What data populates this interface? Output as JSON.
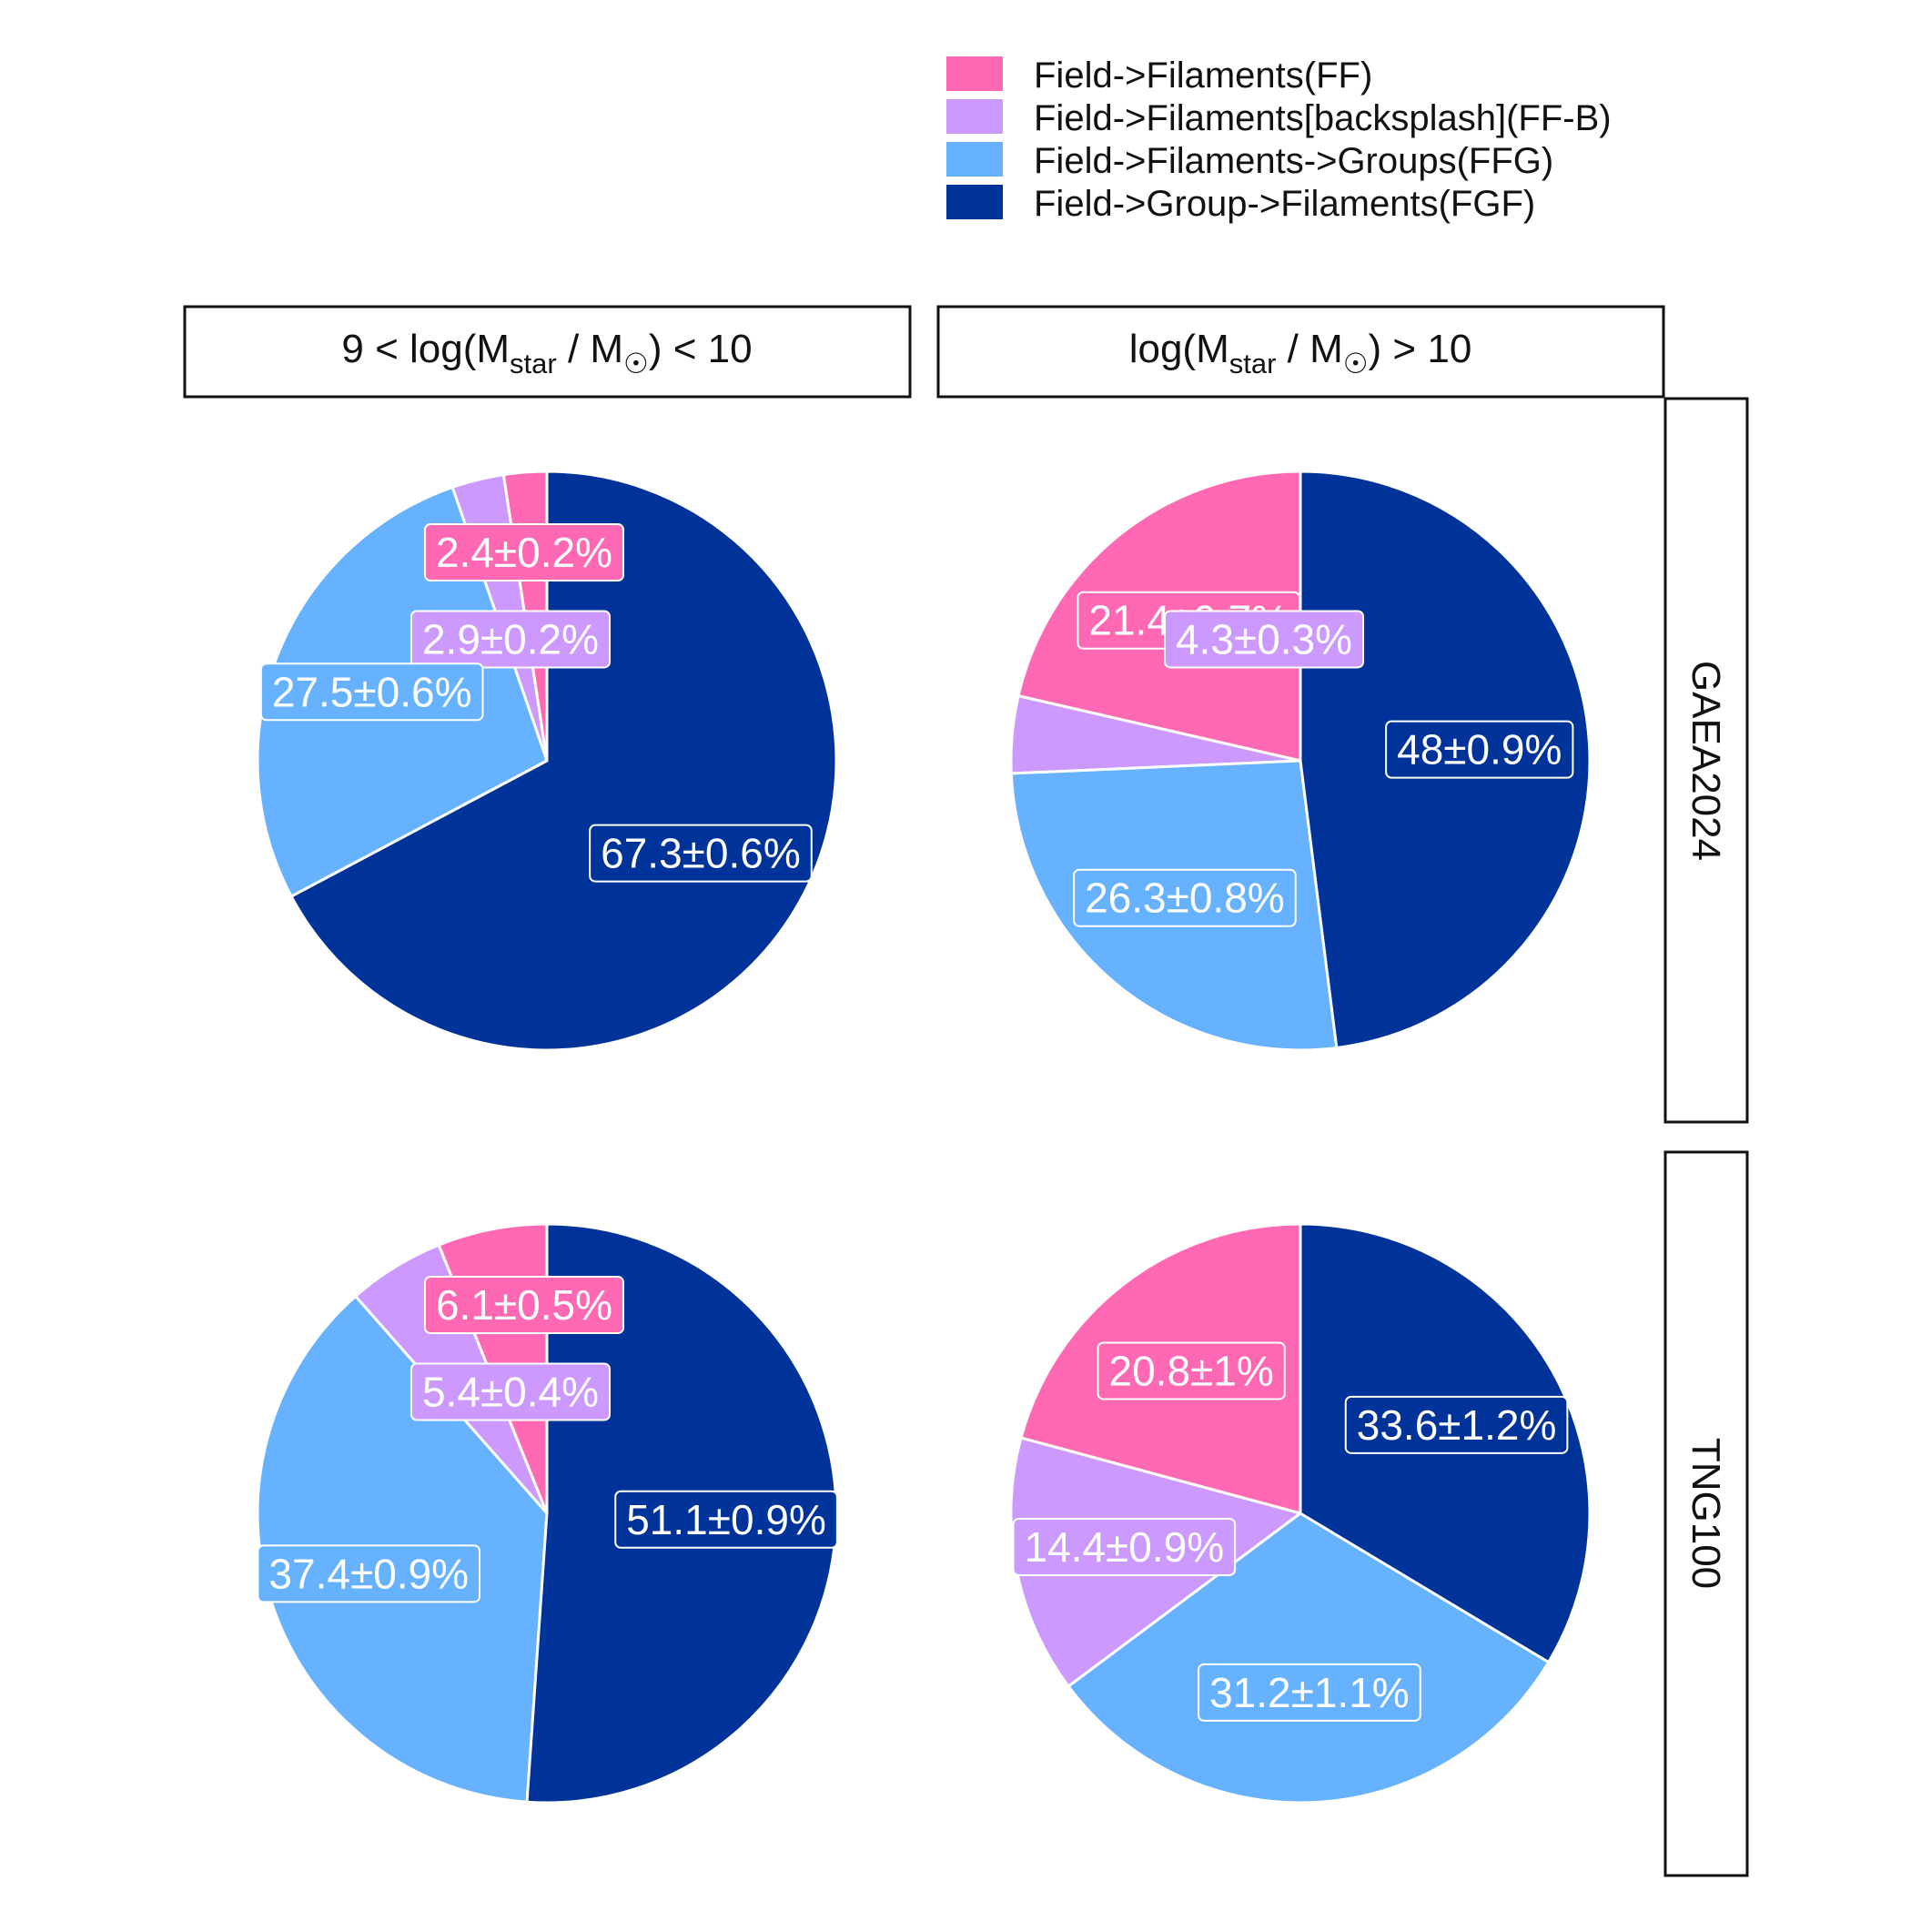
{
  "legend": {
    "items": [
      {
        "label": "Field->Filaments(FF)",
        "color": "#FF69B4"
      },
      {
        "label": "Field->Filaments[backsplash](FF-B)",
        "color": "#CC99FF"
      },
      {
        "label": "Field->Filaments->Groups(FFG)",
        "color": "#66B2FF"
      },
      {
        "label": "Field->Group->Filaments(FGF)",
        "color": "#003399"
      }
    ]
  },
  "columns": [
    {
      "prefix": "9 < log(M",
      "sub": "star",
      "middle": " / M",
      "sun": "☉",
      "suffix": ") < 10"
    },
    {
      "prefix": "log(M",
      "sub": "star",
      "middle": " / M",
      "sun": "☉",
      "suffix": ") > 10"
    }
  ],
  "rows": [
    "GAEA2024",
    "TNG100"
  ],
  "chart_data": {
    "type": "pie",
    "categories": [
      "Field->Filaments(FF)",
      "Field->Filaments[backsplash](FF-B)",
      "Field->Filaments->Groups(FFG)",
      "Field->Group->Filaments(FGF)"
    ],
    "legend_position": "top-right",
    "panels": [
      {
        "row": "GAEA2024",
        "column": "9 < log(Mstar / M☉) < 10",
        "values": [
          2.4,
          2.9,
          27.5,
          67.3
        ],
        "labels": [
          "2.4±0.2%",
          "2.9±0.2%",
          "27.5±0.6%",
          "67.3±0.6%"
        ]
      },
      {
        "row": "GAEA2024",
        "column": "log(Mstar / M☉) > 10",
        "values": [
          21.4,
          4.3,
          26.3,
          48
        ],
        "labels": [
          "21.4±0.7%",
          "4.3±0.3%",
          "26.3±0.8%",
          "48±0.9%"
        ]
      },
      {
        "row": "TNG100",
        "column": "9 < log(Mstar / M☉) < 10",
        "values": [
          6.1,
          5.4,
          37.4,
          51.1
        ],
        "labels": [
          "6.1±0.5%",
          "5.4±0.4%",
          "37.4±0.9%",
          "51.1±0.9%"
        ]
      },
      {
        "row": "TNG100",
        "column": "log(Mstar / M☉) > 10",
        "values": [
          20.8,
          14.4,
          31.2,
          33.6
        ],
        "labels": [
          "20.8±1%",
          "14.4±0.9%",
          "31.2±1.1%",
          "33.6±1.2%"
        ]
      }
    ]
  }
}
